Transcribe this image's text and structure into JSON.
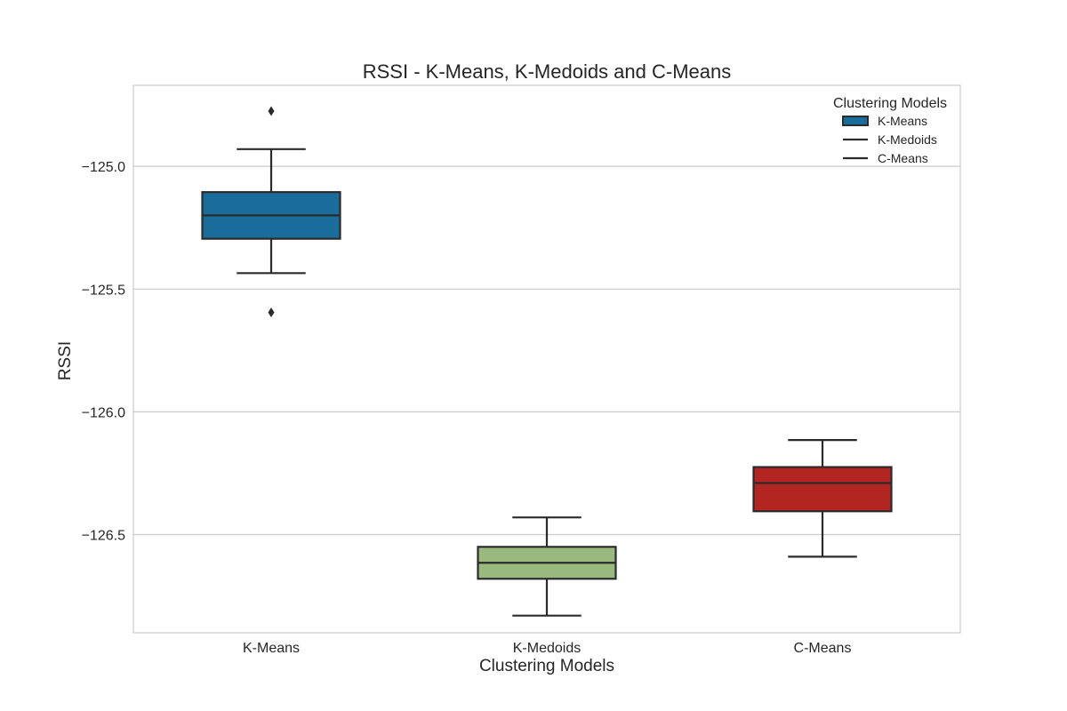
{
  "chart_data": {
    "type": "box",
    "title": "RSSI - K-Means, K-Medoids and C-Means",
    "xlabel": "Clustering Models",
    "ylabel": "RSSI",
    "ylim": [
      -126.9,
      -124.67
    ],
    "yticks": [
      -125.0,
      -125.5,
      -126.0,
      -126.5
    ],
    "ytick_labels": [
      "−125.0",
      "−125.5",
      "−126.0",
      "−126.5"
    ],
    "grid": true,
    "legend": {
      "title": "Clustering Models",
      "placement": "top-right",
      "entries": [
        "K-Means",
        "K-Medoids",
        "C-Means"
      ]
    },
    "categories": [
      "K-Means",
      "K-Medoids",
      "C-Means"
    ],
    "boxes": [
      {
        "category": "K-Means",
        "color": "#1a6d9a",
        "whisker_high": -124.93,
        "q3": -125.105,
        "median": -125.2,
        "q1": -125.295,
        "whisker_low": -125.435,
        "outliers": [
          -124.775,
          -125.595
        ]
      },
      {
        "category": "K-Medoids",
        "color": "#9ab97f",
        "whisker_high": -126.43,
        "q3": -126.55,
        "median": -126.615,
        "q1": -126.68,
        "whisker_low": -126.83,
        "outliers": []
      },
      {
        "category": "C-Means",
        "color": "#b22521",
        "whisker_high": -126.115,
        "q3": -126.225,
        "median": -126.29,
        "q1": -126.405,
        "whisker_low": -126.59,
        "outliers": []
      }
    ]
  }
}
